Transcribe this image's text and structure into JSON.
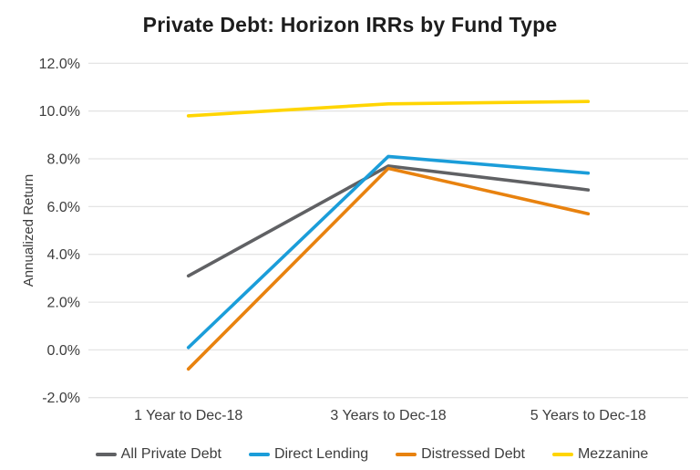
{
  "title": "Private Debt: Horizon IRRs by Fund Type",
  "chart_data": {
    "type": "line",
    "title": "Private Debt: Horizon IRRs by Fund Type",
    "categories": [
      "1 Year to Dec-18",
      "3 Years to Dec-18",
      "5 Years to Dec-18"
    ],
    "series": [
      {
        "name": "All Private Debt",
        "color": "#606164",
        "values": [
          3.1,
          7.7,
          6.7
        ]
      },
      {
        "name": "Direct Lending",
        "color": "#1b9dd9",
        "values": [
          0.1,
          8.1,
          7.4
        ]
      },
      {
        "name": "Distressed Debt",
        "color": "#e8820f",
        "values": [
          -0.8,
          7.6,
          5.7
        ]
      },
      {
        "name": "Mezzanine",
        "color": "#ffd500",
        "values": [
          9.8,
          10.3,
          10.4
        ]
      }
    ],
    "xlabel": "",
    "ylabel": "Annualized Return",
    "ylim": [
      -2,
      12
    ],
    "ytick_values": [
      12,
      10,
      8,
      6,
      4,
      2,
      0,
      -2
    ],
    "ytick_labels": [
      "12.0%",
      "10.0%",
      "8.0%",
      "6.0%",
      "4.0%",
      "2.0%",
      "0.0%",
      "-2.0%"
    ],
    "grid": "horizontal",
    "legend_position": "bottom"
  },
  "colors": {
    "background": "#ffffff",
    "gridline": "#e4e4e4",
    "axis_text": "#3d3d3d",
    "title_text": "#1d1d1d"
  }
}
